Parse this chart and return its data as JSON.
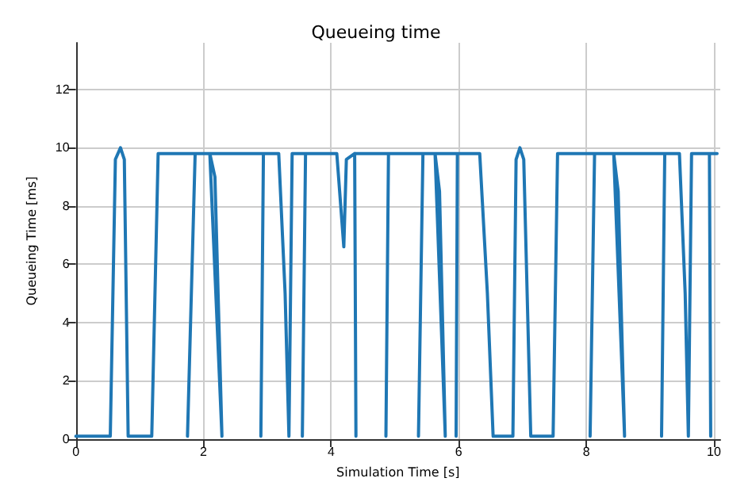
{
  "chart_data": {
    "type": "line",
    "title": "Queueing time",
    "xlabel": "Simulation Time [s]",
    "ylabel": "Queueing Time [ms]",
    "x": [
      0,
      0.54,
      0.62,
      0.7,
      0.76,
      0.82,
      1.19,
      1.29,
      1.87,
      1.75,
      1.87,
      2.1,
      2.18,
      2.29,
      2.1,
      2.94,
      2.9,
      2.94,
      3.18,
      3.28,
      3.34,
      3.39,
      3.6,
      3.55,
      3.6,
      4.09,
      4.2,
      4.24,
      4.37,
      4.39,
      4.37,
      4.9,
      4.86,
      4.9,
      5.44,
      5.37,
      5.44,
      5.63,
      5.7,
      5.79,
      5.63,
      5.98,
      5.96,
      5.98,
      6.33,
      6.45,
      6.54,
      6.85,
      6.9,
      6.96,
      7.02,
      7.13,
      7.48,
      7.55,
      8.13,
      8.06,
      8.13,
      8.43,
      8.5,
      8.6,
      8.43,
      9.23,
      9.18,
      9.23,
      9.46,
      9.55,
      9.6,
      9.65,
      9.93,
      9.95,
      9.93,
      10.05
    ],
    "series": [
      {
        "color": "#1f77b4",
        "values": [
          0.1,
          0.1,
          9.6,
          10,
          9.6,
          0.1,
          0.1,
          9.8,
          9.8,
          0.1,
          9.8,
          9.8,
          9,
          0.1,
          9.8,
          9.8,
          0.1,
          9.8,
          9.8,
          5,
          0.1,
          9.8,
          9.8,
          0.1,
          9.8,
          9.8,
          6.6,
          9.6,
          9.8,
          0.1,
          9.8,
          9.8,
          0.1,
          9.8,
          9.8,
          0.1,
          9.8,
          9.8,
          8.5,
          0.1,
          9.8,
          9.8,
          0.1,
          9.8,
          9.8,
          5,
          0.1,
          0.1,
          9.6,
          10,
          9.6,
          0.1,
          0.1,
          9.8,
          9.8,
          0.1,
          9.8,
          9.8,
          8.5,
          0.1,
          9.8,
          9.8,
          0.1,
          9.8,
          9.8,
          5,
          0.1,
          9.8,
          9.8,
          0.1,
          9.8,
          9.8
        ]
      }
    ],
    "xlim": [
      0,
      10.1
    ],
    "ylim": [
      0,
      13.6
    ],
    "xticks": [
      0,
      2,
      4,
      6,
      8,
      10
    ],
    "yticks": [
      0,
      2,
      4,
      6,
      8,
      10,
      12
    ],
    "grid": true,
    "marker": "none",
    "line_style": "solid"
  }
}
